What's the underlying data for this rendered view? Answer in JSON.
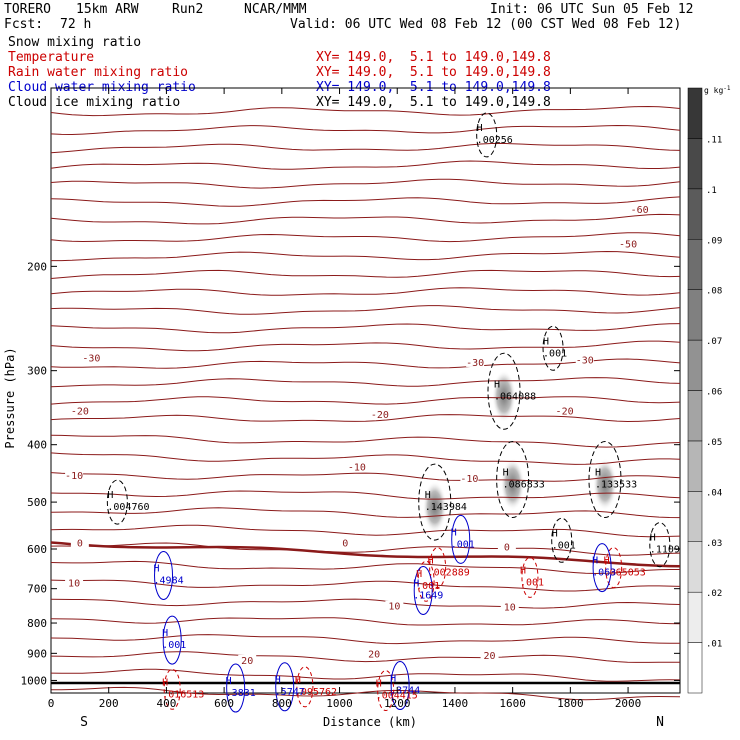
{
  "header": {
    "model": "TORERO",
    "grid": "15km ARW",
    "run": "Run2",
    "org": "NCAR/MMM",
    "init": "Init: 06 UTC Sun 05 Feb 12",
    "fcst": "Fcst:",
    "fcst_hours": "72 h",
    "valid": "Valid: 06 UTC Wed 08 Feb 12 (00 CST Wed 08 Feb 12)"
  },
  "fields": [
    {
      "name": "Snow mixing ratio",
      "xy": "",
      "color": "#000000"
    },
    {
      "name": "Temperature",
      "xy": "XY= 149.0,  5.1 to 149.0,149.8",
      "color": "#cc0000"
    },
    {
      "name": "Rain water mixing ratio",
      "xy": "XY= 149.0,  5.1 to 149.0,149.8",
      "color": "#cc0000"
    },
    {
      "name": "Cloud water mixing ratio",
      "xy": "XY= 149.0,  5.1 to 149.0,149.8",
      "color": "#0000cc"
    },
    {
      "name": "Cloud ice mixing ratio",
      "xy": "XY= 149.0,  5.1 to 149.0,149.8",
      "color": "#000000"
    }
  ],
  "chart_data": {
    "type": "cross-section",
    "xlabel": "Distance (km)",
    "ylabel": "Pressure (hPa)",
    "x_ticks": [
      0,
      200,
      400,
      600,
      800,
      1000,
      1200,
      1400,
      1600,
      1800,
      2000
    ],
    "y_ticks": [
      200,
      300,
      400,
      500,
      600,
      700,
      800,
      900,
      1000
    ],
    "xlim": [
      0,
      2180
    ],
    "ylim": [
      1050,
      100
    ],
    "y_scale": "log",
    "grid": false,
    "endpoint_labels": {
      "left": "S",
      "right": "N"
    },
    "colorbar": {
      "unit": "g kg",
      "unit_exponent": "-1",
      "levels": [
        0.01,
        0.02,
        0.03,
        0.04,
        0.05,
        0.06,
        0.07,
        0.08,
        0.09,
        0.1,
        0.11
      ],
      "labels": [
        ".01",
        ".02",
        ".03",
        ".04",
        ".05",
        ".06",
        ".07",
        ".08",
        ".09",
        ".1",
        ".11"
      ],
      "color_low": "#ffffff",
      "color_high": "#333333"
    },
    "temperature_isotherms": {
      "color": "#8b1a1a",
      "interval": 5,
      "labels": [
        {
          "x": 2040,
          "p": 160,
          "text": "-60"
        },
        {
          "x": 2000,
          "p": 183,
          "text": "-50"
        },
        {
          "x": 140,
          "p": 285,
          "text": "-30"
        },
        {
          "x": 1470,
          "p": 290,
          "text": "-30"
        },
        {
          "x": 1850,
          "p": 287,
          "text": "-30"
        },
        {
          "x": 100,
          "p": 350,
          "text": "-20"
        },
        {
          "x": 1140,
          "p": 355,
          "text": "-20"
        },
        {
          "x": 1780,
          "p": 350,
          "text": "-20"
        },
        {
          "x": 80,
          "p": 450,
          "text": "-10"
        },
        {
          "x": 1060,
          "p": 435,
          "text": "-10"
        },
        {
          "x": 1450,
          "p": 455,
          "text": "-10"
        },
        {
          "x": 100,
          "p": 585,
          "text": "0"
        },
        {
          "x": 1020,
          "p": 585,
          "text": "0"
        },
        {
          "x": 1580,
          "p": 594,
          "text": "0"
        },
        {
          "x": 80,
          "p": 684,
          "text": "10"
        },
        {
          "x": 1190,
          "p": 748,
          "text": "10"
        },
        {
          "x": 1590,
          "p": 750,
          "text": "10"
        },
        {
          "x": 680,
          "p": 923,
          "text": "20"
        },
        {
          "x": 1120,
          "p": 900,
          "text": "20"
        },
        {
          "x": 1520,
          "p": 905,
          "text": "20"
        }
      ]
    },
    "snow_mixing_ratio_maxima": [
      {
        "x": 1330,
        "p": 500,
        "text": ".143984"
      },
      {
        "x": 1600,
        "p": 458,
        "text": ".086833"
      },
      {
        "x": 1920,
        "p": 458,
        "text": ".133533"
      },
      {
        "x": 1570,
        "p": 325,
        "text": ".064088"
      }
    ],
    "cloud_ice_maxima": [
      {
        "x": 230,
        "p": 500,
        "text": ".004760"
      },
      {
        "x": 1510,
        "p": 120,
        "text": ".00256"
      },
      {
        "x": 1770,
        "p": 580,
        "text": ".001"
      },
      {
        "x": 1740,
        "p": 275,
        "text": ".001"
      },
      {
        "x": 2110,
        "p": 590,
        "text": ".1109"
      }
    ],
    "rain_water_maxima": [
      {
        "x": 1340,
        "p": 645,
        "text": ".002889"
      },
      {
        "x": 1950,
        "p": 645,
        "text": ".065053"
      },
      {
        "x": 1300,
        "p": 680,
        "text": ".001"
      },
      {
        "x": 1660,
        "p": 670,
        "text": ".001"
      },
      {
        "x": 1160,
        "p": 1040,
        "text": ".004415"
      },
      {
        "x": 420,
        "p": 1035,
        "text": ".016513"
      },
      {
        "x": 880,
        "p": 1025,
        "text": ".095762"
      }
    ],
    "cloud_water_maxima": [
      {
        "x": 390,
        "p": 665,
        "text": ".4984"
      },
      {
        "x": 420,
        "p": 855,
        "text": ".001"
      },
      {
        "x": 1290,
        "p": 705,
        "text": ".1649"
      },
      {
        "x": 1420,
        "p": 578,
        "text": ".001"
      },
      {
        "x": 1210,
        "p": 1020,
        "text": ".3744"
      },
      {
        "x": 640,
        "p": 1030,
        "text": ".3831"
      },
      {
        "x": 810,
        "p": 1025,
        "text": ".5747"
      },
      {
        "x": 1910,
        "p": 645,
        "text": ".063"
      }
    ]
  }
}
